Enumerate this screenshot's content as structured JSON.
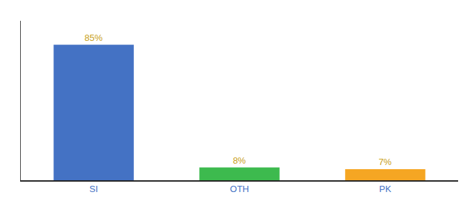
{
  "chart_data": {
    "type": "bar",
    "categories": [
      "SI",
      "OTH",
      "PK"
    ],
    "values": [
      85,
      8,
      7
    ],
    "value_labels": [
      "85%",
      "8%",
      "7%"
    ],
    "colors": [
      "#4472c4",
      "#3dba4e",
      "#f5a623"
    ],
    "ylim": [
      0,
      100
    ],
    "yticks": [],
    "grid": false,
    "data_labels": true,
    "tick_labels": "x"
  }
}
